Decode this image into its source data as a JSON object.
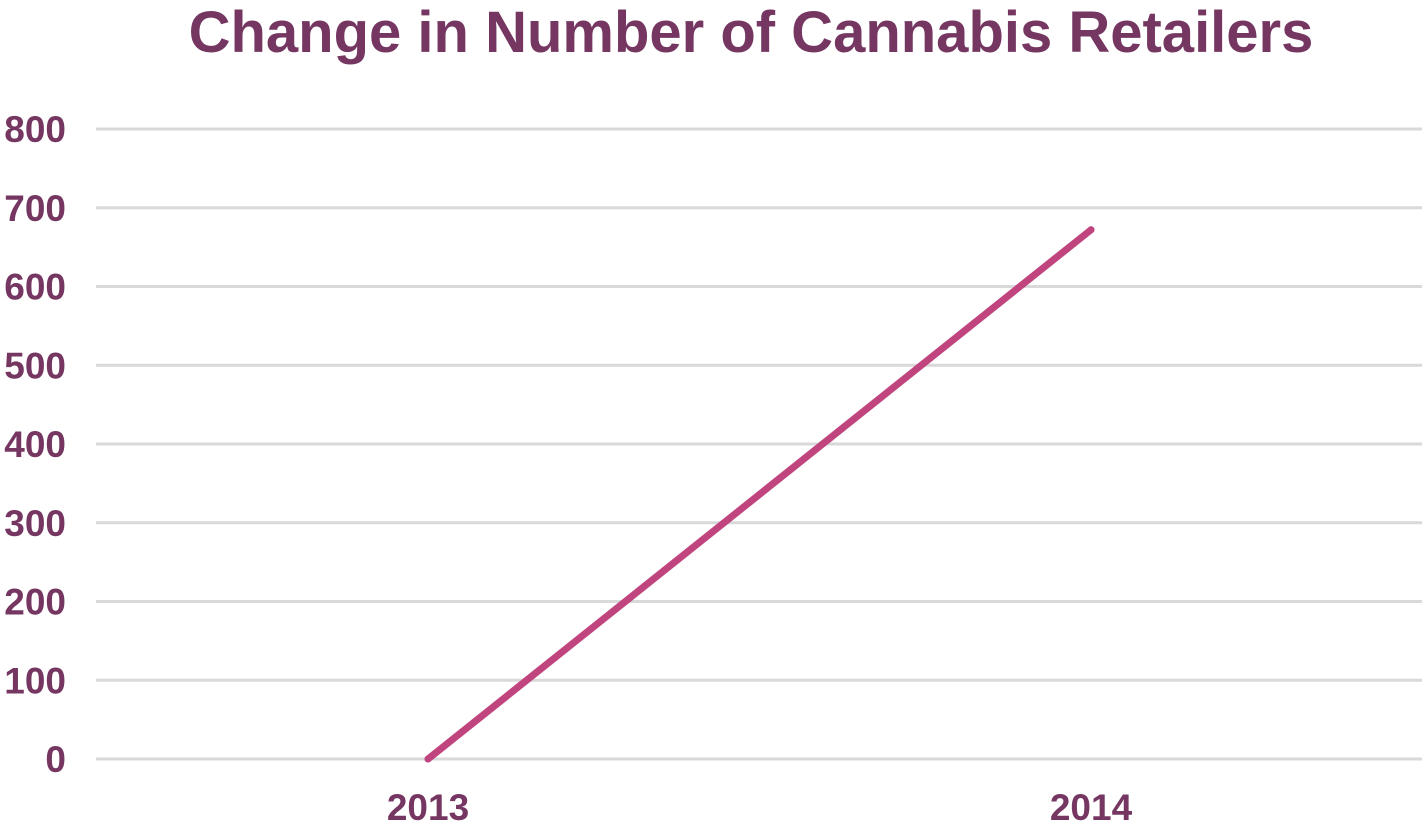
{
  "colors": {
    "text": "#753762",
    "grid": "#d9d9d9",
    "line": "#c0457f",
    "background": "#ffffff"
  },
  "chart_data": {
    "type": "line",
    "title": "Change in Number of Cannabis Retailers",
    "xlabel": "",
    "ylabel": "",
    "categories": [
      "2013",
      "2014"
    ],
    "series": [
      {
        "values": [
          0,
          672
        ]
      }
    ],
    "ylim": [
      0,
      800
    ],
    "yticks": [
      0,
      100,
      200,
      300,
      400,
      500,
      600,
      700,
      800
    ],
    "grid": true,
    "legend": "none"
  }
}
